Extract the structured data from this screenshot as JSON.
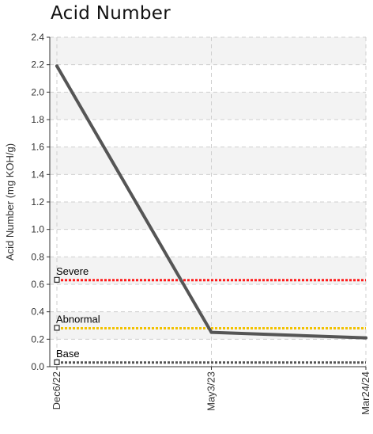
{
  "chart_data": {
    "type": "line",
    "title": "Acid Number",
    "xlabel": "",
    "ylabel": "Acid Number (mg KOH/g)",
    "categories": [
      "Dec6/22",
      "May3/23",
      "Mar24/24"
    ],
    "ylim": [
      0,
      2.4
    ],
    "yticks": [
      "0.0",
      "0.2",
      "0.4",
      "0.6",
      "0.8",
      "1.0",
      "1.2",
      "1.4",
      "1.6",
      "1.8",
      "2.0",
      "2.2",
      "2.4"
    ],
    "grid": true,
    "series": [
      {
        "values": [
          2.19,
          0.25,
          0.21
        ],
        "color": "#555555"
      }
    ],
    "thresholds": [
      {
        "label": "Severe",
        "value": 0.63,
        "color": "#ff1a1a"
      },
      {
        "label": "Abnormal",
        "value": 0.28,
        "color": "#f2c200"
      },
      {
        "label": "Base",
        "value": 0.03,
        "color": "#555555"
      }
    ]
  }
}
